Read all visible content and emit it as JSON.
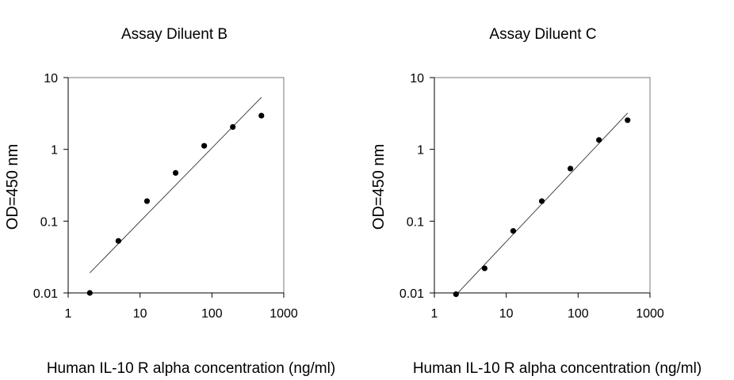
{
  "chart_data": [
    {
      "type": "scatter",
      "title": "Assay Diluent B",
      "xlabel": "Human IL-10 R alpha concentration (ng/ml)",
      "ylabel": "OD=450 nm",
      "xscale": "log",
      "yscale": "log",
      "xlim": [
        1,
        1000
      ],
      "ylim": [
        0.01,
        10
      ],
      "x_ticks": [
        "1",
        "10",
        "100",
        "1000"
      ],
      "y_ticks": [
        "0.01",
        "0.1",
        "1",
        "10"
      ],
      "grid": false,
      "series": [
        {
          "x": [
            2,
            5,
            12.5,
            31.25,
            78.125,
            195.3,
            488.3
          ],
          "y": [
            0.01,
            0.053,
            0.19,
            0.47,
            1.12,
            2.05,
            2.95
          ]
        }
      ],
      "trendline": {
        "x": [
          2,
          488.3
        ],
        "y": [
          0.019,
          5.3
        ]
      }
    },
    {
      "type": "scatter",
      "title": "Assay Diluent C",
      "xlabel": "Human IL-10 R alpha concentration (ng/ml)",
      "ylabel": "OD=450 nm",
      "xscale": "log",
      "yscale": "log",
      "xlim": [
        1,
        1000
      ],
      "ylim": [
        0.01,
        10
      ],
      "x_ticks": [
        "1",
        "10",
        "100",
        "1000"
      ],
      "y_ticks": [
        "0.01",
        "0.1",
        "1",
        "10"
      ],
      "grid": false,
      "series": [
        {
          "x": [
            2,
            5,
            12.5,
            31.25,
            78.125,
            195.3,
            488.3
          ],
          "y": [
            0.0096,
            0.022,
            0.073,
            0.19,
            0.54,
            1.35,
            2.55
          ]
        }
      ],
      "trendline": {
        "x": [
          2,
          488.3
        ],
        "y": [
          0.0094,
          3.2
        ]
      }
    }
  ]
}
